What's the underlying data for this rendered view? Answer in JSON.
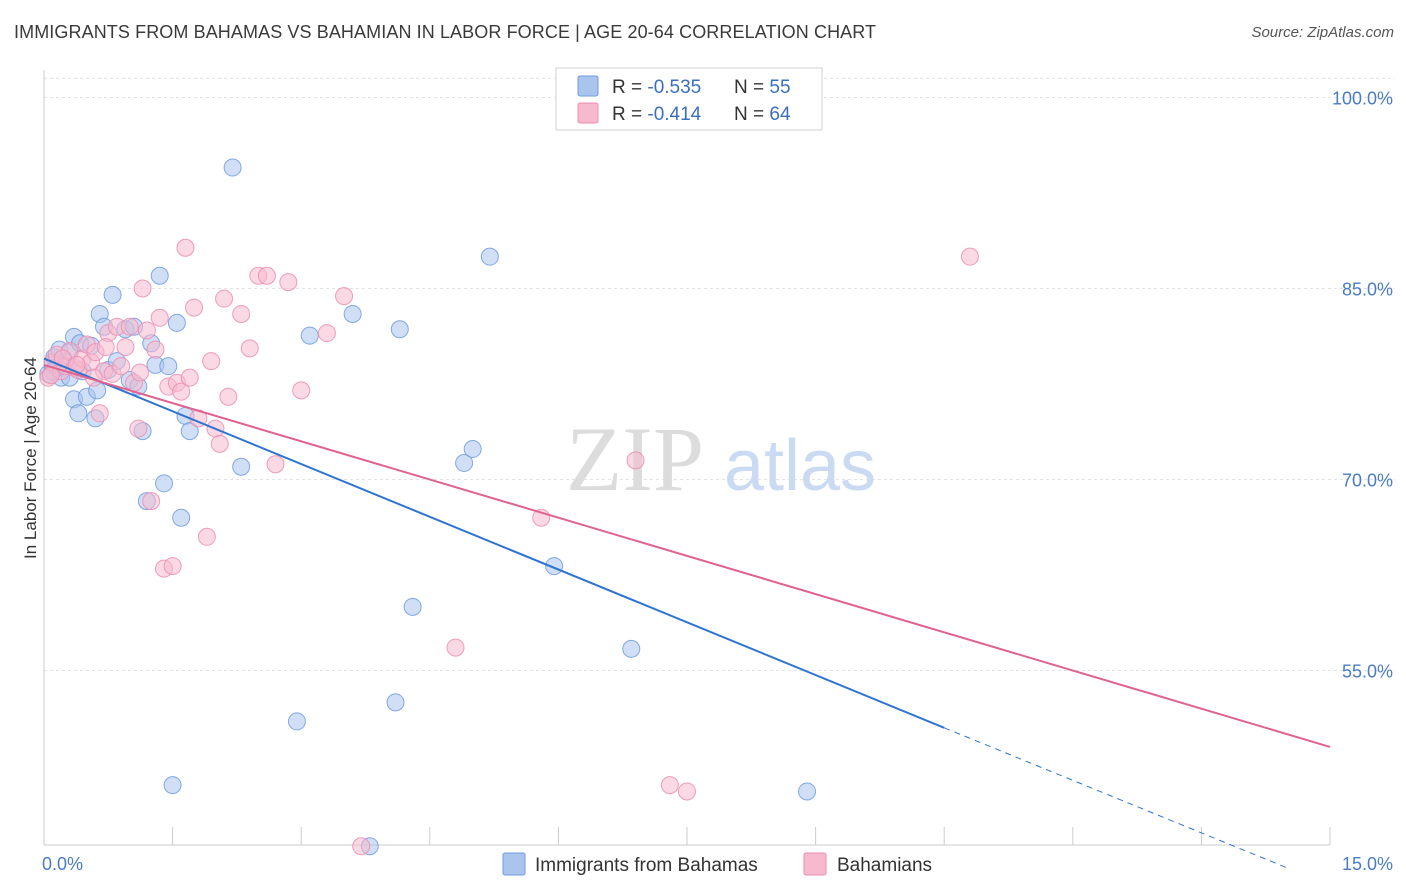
{
  "title": "IMMIGRANTS FROM BAHAMAS VS BAHAMIAN IN LABOR FORCE | AGE 20-64 CORRELATION CHART",
  "source": "Source: ZipAtlas.com",
  "watermark": {
    "zip": "ZIP",
    "atlas": "atlas"
  },
  "legend_top": [
    {
      "r_label": "R = ",
      "r_value": "-0.535",
      "n_label": "N = ",
      "n_value": "55"
    },
    {
      "r_label": "R = ",
      "r_value": "-0.414",
      "n_label": "N = ",
      "n_value": "64"
    }
  ],
  "chart_data": {
    "type": "scatter",
    "ylabel": "In Labor Force | Age 20-64",
    "xlim": [
      0,
      15
    ],
    "ylim": [
      40,
      102
    ],
    "x_tick_labels": [
      {
        "value": 0,
        "label": "0.0%"
      },
      {
        "value": 15,
        "label": "15.0%"
      }
    ],
    "y_tick_labels": [
      {
        "value": 100,
        "label": "100.0%"
      },
      {
        "value": 85,
        "label": "85.0%"
      },
      {
        "value": 70,
        "label": "70.0%"
      },
      {
        "value": 55,
        "label": "55.0%"
      }
    ],
    "colors": {
      "blue_fill": "#a9c5ee",
      "blue_stroke": "#6f9be0",
      "blue_line": "#2f74d0",
      "pink_fill": "#f6b9cd",
      "pink_stroke": "#ec8db0",
      "pink_line": "#e0628f"
    },
    "series": [
      {
        "name": "Immigrants from Bahamas",
        "color": "#a9c5ee",
        "trend": {
          "x0": 0.0,
          "y0": 79.5,
          "x1": 10.5,
          "y1": 50.5,
          "dash_x1": 14.5,
          "dash_y1": 39.5
        },
        "points": [
          [
            0.05,
            78.3
          ],
          [
            0.1,
            79.0
          ],
          [
            0.12,
            79.6
          ],
          [
            0.15,
            78.8
          ],
          [
            0.18,
            80.2
          ],
          [
            0.2,
            78.0
          ],
          [
            0.25,
            79.2
          ],
          [
            0.3,
            80.0
          ],
          [
            0.3,
            78.0
          ],
          [
            0.35,
            76.3
          ],
          [
            0.35,
            81.2
          ],
          [
            0.4,
            75.2
          ],
          [
            0.42,
            80.7
          ],
          [
            0.45,
            78.5
          ],
          [
            0.5,
            76.5
          ],
          [
            0.55,
            80.5
          ],
          [
            0.6,
            74.8
          ],
          [
            0.62,
            77.0
          ],
          [
            0.65,
            83.0
          ],
          [
            0.7,
            82.0
          ],
          [
            0.75,
            78.6
          ],
          [
            0.8,
            84.5
          ],
          [
            0.85,
            79.3
          ],
          [
            0.95,
            81.8
          ],
          [
            1.0,
            77.8
          ],
          [
            1.05,
            82.0
          ],
          [
            1.1,
            77.3
          ],
          [
            1.15,
            73.8
          ],
          [
            1.2,
            68.3
          ],
          [
            1.25,
            80.7
          ],
          [
            1.3,
            79.0
          ],
          [
            1.35,
            86.0
          ],
          [
            1.4,
            69.7
          ],
          [
            1.45,
            78.9
          ],
          [
            1.5,
            46.0
          ],
          [
            1.55,
            82.3
          ],
          [
            1.6,
            67.0
          ],
          [
            1.65,
            75.0
          ],
          [
            1.7,
            73.8
          ],
          [
            2.2,
            94.5
          ],
          [
            2.3,
            71.0
          ],
          [
            2.95,
            51.0
          ],
          [
            3.1,
            81.3
          ],
          [
            3.6,
            83.0
          ],
          [
            3.8,
            41.2
          ],
          [
            4.1,
            52.5
          ],
          [
            4.15,
            81.8
          ],
          [
            4.3,
            60.0
          ],
          [
            4.9,
            71.3
          ],
          [
            5.0,
            72.4
          ],
          [
            5.2,
            87.5
          ],
          [
            5.95,
            63.2
          ],
          [
            6.85,
            56.7
          ],
          [
            8.9,
            45.5
          ],
          [
            0.1,
            78.5
          ]
        ]
      },
      {
        "name": "Bahamians",
        "color": "#f6b9cd",
        "trend": {
          "x0": 0.0,
          "y0": 79.0,
          "x1": 15.0,
          "y1": 49.0
        },
        "points": [
          [
            0.05,
            78.0
          ],
          [
            0.1,
            79.2
          ],
          [
            0.15,
            79.8
          ],
          [
            0.2,
            78.5
          ],
          [
            0.25,
            78.9
          ],
          [
            0.3,
            80.1
          ],
          [
            0.35,
            78.8
          ],
          [
            0.4,
            78.6
          ],
          [
            0.45,
            79.5
          ],
          [
            0.5,
            80.6
          ],
          [
            0.55,
            79.2
          ],
          [
            0.6,
            80.0
          ],
          [
            0.65,
            75.2
          ],
          [
            0.7,
            78.5
          ],
          [
            0.75,
            81.5
          ],
          [
            0.8,
            78.3
          ],
          [
            0.85,
            82.0
          ],
          [
            0.9,
            78.9
          ],
          [
            0.95,
            80.4
          ],
          [
            1.0,
            82.0
          ],
          [
            1.05,
            77.6
          ],
          [
            1.1,
            74.0
          ],
          [
            1.15,
            85.0
          ],
          [
            1.2,
            81.7
          ],
          [
            1.25,
            68.3
          ],
          [
            1.3,
            80.2
          ],
          [
            1.35,
            82.7
          ],
          [
            1.4,
            63.0
          ],
          [
            1.45,
            77.3
          ],
          [
            1.5,
            63.2
          ],
          [
            1.55,
            77.6
          ],
          [
            1.6,
            76.9
          ],
          [
            1.65,
            88.2
          ],
          [
            1.7,
            78.0
          ],
          [
            1.75,
            83.5
          ],
          [
            1.8,
            74.8
          ],
          [
            1.9,
            65.5
          ],
          [
            1.95,
            79.3
          ],
          [
            2.0,
            74.0
          ],
          [
            2.05,
            72.8
          ],
          [
            2.1,
            84.2
          ],
          [
            2.15,
            76.5
          ],
          [
            2.3,
            83.0
          ],
          [
            2.4,
            80.3
          ],
          [
            2.5,
            86.0
          ],
          [
            2.6,
            86.0
          ],
          [
            2.7,
            71.2
          ],
          [
            2.85,
            85.5
          ],
          [
            3.0,
            77.0
          ],
          [
            3.3,
            81.5
          ],
          [
            3.5,
            84.4
          ],
          [
            3.7,
            41.2
          ],
          [
            4.8,
            56.8
          ],
          [
            5.8,
            67.0
          ],
          [
            6.9,
            71.5
          ],
          [
            7.3,
            46.0
          ],
          [
            7.5,
            45.5
          ],
          [
            10.8,
            87.5
          ],
          [
            0.08,
            78.2
          ],
          [
            0.22,
            79.5
          ],
          [
            0.38,
            79.0
          ],
          [
            0.58,
            78.0
          ],
          [
            0.72,
            80.4
          ],
          [
            1.12,
            78.4
          ]
        ]
      }
    ]
  },
  "bottom_legend": [
    {
      "label": "Immigrants from Bahamas"
    },
    {
      "label": "Bahamians"
    }
  ]
}
